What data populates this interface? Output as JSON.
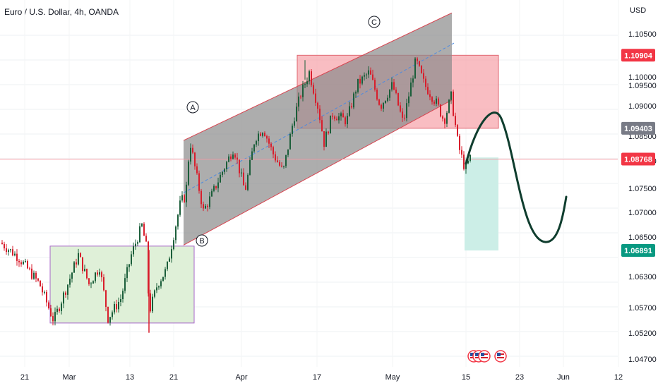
{
  "chart_title": "Euro / U.S. Dollar, 4h, OANDA",
  "axis_currency": "USD",
  "colors": {
    "up": "#1b5e3a",
    "down": "#d81e2c",
    "channel_fill": "#8a8a8a",
    "channel_edge": "#d9434f",
    "resistance_fill": "#f7a7ad",
    "resistance_edge": "#e06670",
    "target_fill": "#cceee7",
    "range_fill": "#dff0d8",
    "range_edge": "#a766c8",
    "projection": "#0f3d2e",
    "midline": "#4e8be0",
    "badge_red": "#f23645",
    "badge_gray": "#787b86",
    "badge_green": "#089981"
  },
  "chart_data": {
    "type": "candlestick",
    "symbol": "EURUSD",
    "timeframe": "4h",
    "source": "OANDA",
    "y_ticks": [
      "1.10500",
      "1.10000",
      "1.09500",
      "1.09000",
      "1.08500",
      "1.08000",
      "1.07500",
      "1.07000",
      "1.06500",
      "1.06300",
      "1.05700",
      "1.05200",
      "1.04700"
    ],
    "x_ticks": [
      "21",
      "Mar",
      "13",
      "21",
      "Apr",
      "17",
      "May",
      "15",
      "23",
      "Jun",
      "12"
    ],
    "price_badges": [
      {
        "label": "1.10904",
        "style": "red"
      },
      {
        "label": "1.09403",
        "style": "gray"
      },
      {
        "label": "1.08768",
        "style": "red"
      },
      {
        "label": "1.06891",
        "style": "green"
      }
    ],
    "price_line": 1.08768,
    "annotations": [
      "A",
      "B",
      "C"
    ],
    "ylim": [
      1.045,
      1.116
    ],
    "series_control_points": [
      [
        0,
        1.0705
      ],
      [
        25,
        1.0675
      ],
      [
        55,
        1.062
      ],
      [
        75,
        1.0545
      ],
      [
        95,
        1.062
      ],
      [
        110,
        1.068
      ],
      [
        125,
        1.062
      ],
      [
        140,
        1.0655
      ],
      [
        152,
        1.055
      ],
      [
        170,
        1.059
      ],
      [
        185,
        1.068
      ],
      [
        200,
        1.074
      ],
      [
        207,
        1.069
      ],
      [
        210,
        1.056
      ],
      [
        222,
        1.062
      ],
      [
        235,
        1.065
      ],
      [
        242,
        1.07
      ],
      [
        255,
        1.079
      ],
      [
        262,
        1.08
      ],
      [
        268,
        1.0915
      ],
      [
        275,
        1.086
      ],
      [
        287,
        1.077
      ],
      [
        298,
        1.08
      ],
      [
        312,
        1.0845
      ],
      [
        330,
        1.09
      ],
      [
        346,
        1.081
      ],
      [
        360,
        1.092
      ],
      [
        372,
        1.094
      ],
      [
        385,
        1.089
      ],
      [
        400,
        1.085
      ],
      [
        415,
        1.096
      ],
      [
        425,
        1.101
      ],
      [
        437,
        1.1055
      ],
      [
        450,
        1.098
      ],
      [
        458,
        1.091
      ],
      [
        470,
        1.097
      ],
      [
        490,
        1.0955
      ],
      [
        505,
        1.103
      ],
      [
        522,
        1.1055
      ],
      [
        538,
        1.0985
      ],
      [
        555,
        1.103
      ],
      [
        570,
        1.095
      ],
      [
        588,
        1.108
      ],
      [
        600,
        1.103
      ],
      [
        618,
        1.099
      ],
      [
        628,
        1.0955
      ],
      [
        638,
        1.1005
      ],
      [
        648,
        1.0905
      ],
      [
        658,
        1.0855
      ],
      [
        665,
        1.088
      ]
    ],
    "channel": {
      "lower": [
        [
          260,
          1.07
        ],
        [
          640,
          1.0998
        ]
      ],
      "upper": [
        [
          260,
          1.0915
        ],
        [
          640,
          1.1177
        ]
      ]
    },
    "resistance_zone": [
      1.094,
      1.109
    ],
    "target_zone": [
      1.0689,
      1.088
    ],
    "range_zone": [
      1.054,
      1.0698
    ]
  }
}
